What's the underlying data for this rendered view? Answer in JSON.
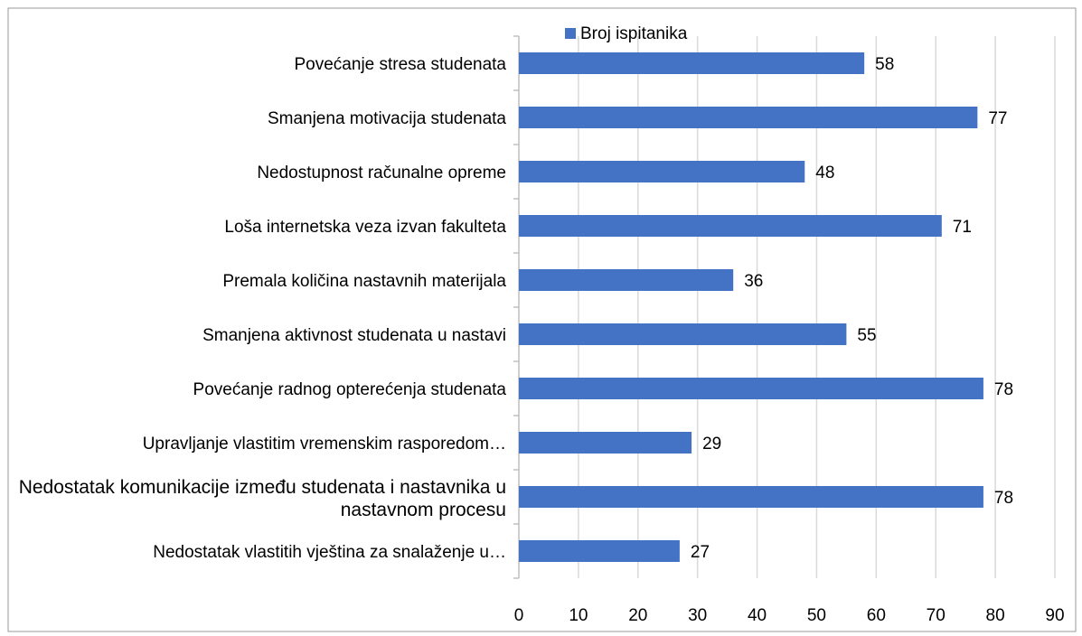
{
  "chart_data": {
    "type": "bar",
    "orientation": "horizontal",
    "categories": [
      "Povećanje stresa studenata",
      "Smanjena motivacija studenata",
      "Nedostupnost računalne opreme",
      "Loša internetska veza izvan fakulteta",
      "Premala količina nastavnih materijala",
      "Smanjena aktivnost studenata u nastavi",
      "Povećanje radnog opterećenja studenata",
      "Upravljanje vlastitim vremenskim rasporedom…",
      "Nedostatak komunikacije između studenata i nastavnika u nastavnom procesu",
      "Nedostatak vlastitih vještina za snalaženje u…"
    ],
    "series": [
      {
        "name": "Broj ispitanika",
        "color": "#4472c4",
        "values": [
          58,
          77,
          48,
          71,
          36,
          55,
          78,
          29,
          78,
          27
        ]
      }
    ],
    "xlim": [
      0,
      90
    ],
    "xticks": [
      0,
      10,
      20,
      30,
      40,
      50,
      60,
      70,
      80,
      90
    ],
    "grid": true,
    "legend": "top"
  }
}
